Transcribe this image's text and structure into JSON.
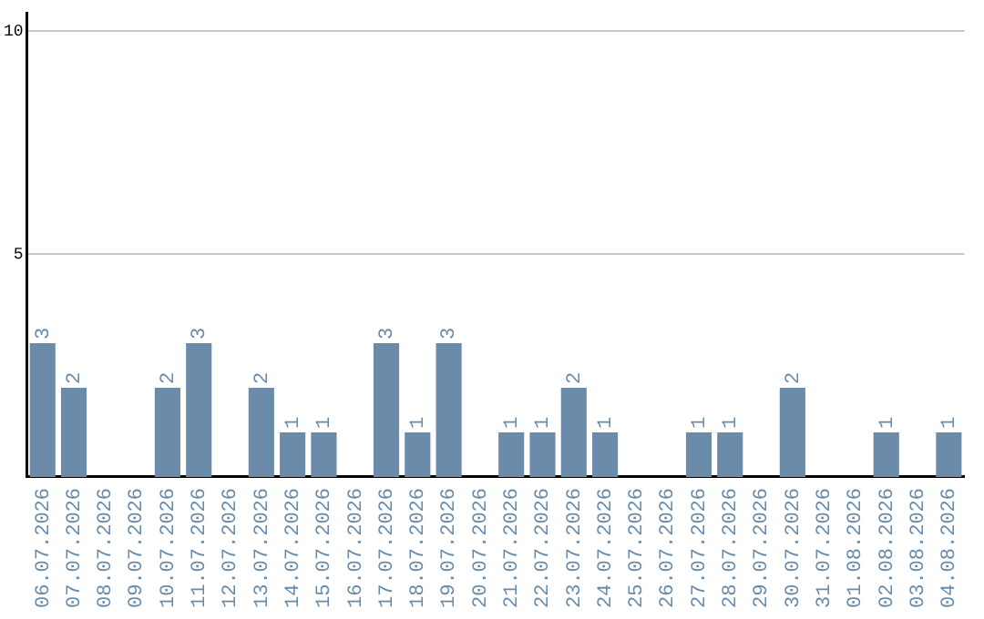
{
  "chart_data": {
    "type": "bar",
    "categories": [
      "06.07.2026",
      "07.07.2026",
      "08.07.2026",
      "09.07.2026",
      "10.07.2026",
      "11.07.2026",
      "12.07.2026",
      "13.07.2026",
      "14.07.2026",
      "15.07.2026",
      "16.07.2026",
      "17.07.2026",
      "18.07.2026",
      "19.07.2026",
      "20.07.2026",
      "21.07.2026",
      "22.07.2026",
      "23.07.2026",
      "24.07.2026",
      "25.07.2026",
      "26.07.2026",
      "27.07.2026",
      "28.07.2026",
      "29.07.2026",
      "30.07.2026",
      "31.07.2026",
      "01.08.2026",
      "02.08.2026",
      "03.08.2026",
      "04.08.2026"
    ],
    "values": [
      3,
      2,
      0,
      0,
      2,
      3,
      0,
      2,
      1,
      1,
      0,
      3,
      1,
      3,
      0,
      1,
      1,
      2,
      1,
      0,
      0,
      1,
      1,
      0,
      2,
      0,
      0,
      1,
      0,
      1
    ],
    "value_labels": [
      "3",
      "2",
      null,
      null,
      "2",
      "3",
      null,
      "2",
      "1",
      "1",
      null,
      "3",
      "1",
      "3",
      null,
      "1",
      "1",
      "2",
      "1",
      null,
      null,
      "1",
      "1",
      null,
      "2",
      null,
      null,
      "1",
      null,
      "1"
    ],
    "color": "#6a8caa",
    "ylim": [
      0,
      10.4
    ],
    "yticks": [
      5,
      10
    ],
    "grid": "y",
    "legend": false
  }
}
